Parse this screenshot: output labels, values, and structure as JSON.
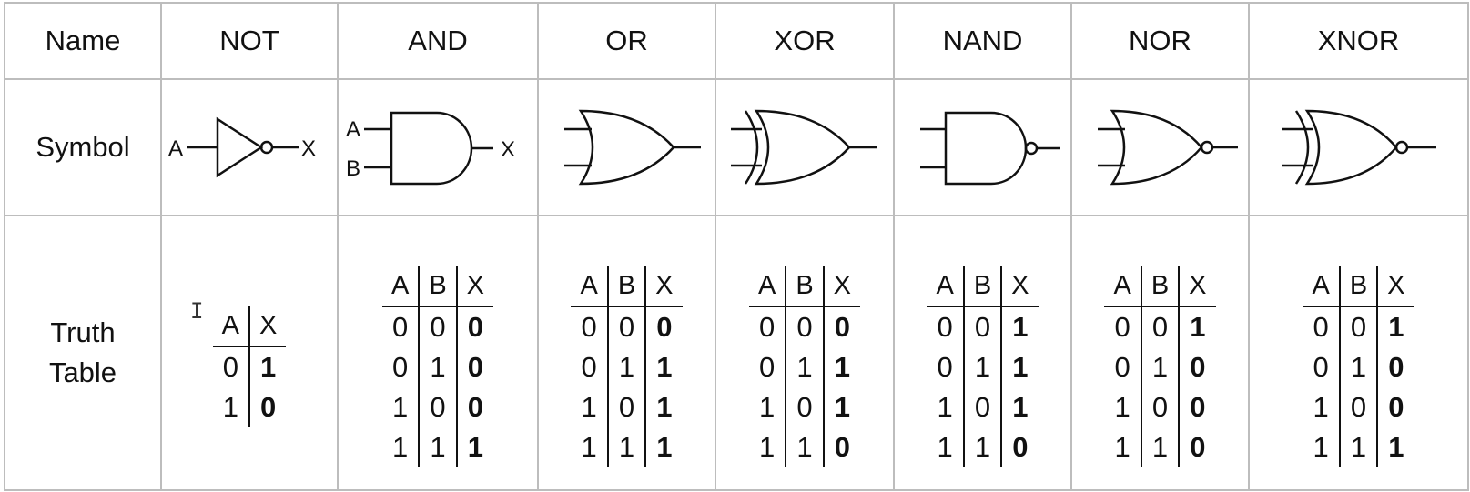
{
  "row_labels": {
    "name": "Name",
    "symbol": "Symbol",
    "truth_line1": "Truth",
    "truth_line2": "Table"
  },
  "pin_labels": {
    "a": "A",
    "b": "B",
    "x": "X"
  },
  "gates": [
    {
      "name": "NOT",
      "icon": "not-gate-icon",
      "columns": [
        "A",
        "X"
      ],
      "rows": [
        [
          "0",
          "1"
        ],
        [
          "1",
          "0"
        ]
      ]
    },
    {
      "name": "AND",
      "icon": "and-gate-icon",
      "columns": [
        "A",
        "B",
        "X"
      ],
      "rows": [
        [
          "0",
          "0",
          "0"
        ],
        [
          "0",
          "1",
          "0"
        ],
        [
          "1",
          "0",
          "0"
        ],
        [
          "1",
          "1",
          "1"
        ]
      ]
    },
    {
      "name": "OR",
      "icon": "or-gate-icon",
      "columns": [
        "A",
        "B",
        "X"
      ],
      "rows": [
        [
          "0",
          "0",
          "0"
        ],
        [
          "0",
          "1",
          "1"
        ],
        [
          "1",
          "0",
          "1"
        ],
        [
          "1",
          "1",
          "1"
        ]
      ]
    },
    {
      "name": "XOR",
      "icon": "xor-gate-icon",
      "columns": [
        "A",
        "B",
        "X"
      ],
      "rows": [
        [
          "0",
          "0",
          "0"
        ],
        [
          "0",
          "1",
          "1"
        ],
        [
          "1",
          "0",
          "1"
        ],
        [
          "1",
          "1",
          "0"
        ]
      ]
    },
    {
      "name": "NAND",
      "icon": "nand-gate-icon",
      "columns": [
        "A",
        "B",
        "X"
      ],
      "rows": [
        [
          "0",
          "0",
          "1"
        ],
        [
          "0",
          "1",
          "1"
        ],
        [
          "1",
          "0",
          "1"
        ],
        [
          "1",
          "1",
          "0"
        ]
      ]
    },
    {
      "name": "NOR",
      "icon": "nor-gate-icon",
      "columns": [
        "A",
        "B",
        "X"
      ],
      "rows": [
        [
          "0",
          "0",
          "1"
        ],
        [
          "0",
          "1",
          "0"
        ],
        [
          "1",
          "0",
          "0"
        ],
        [
          "1",
          "1",
          "0"
        ]
      ]
    },
    {
      "name": "XNOR",
      "icon": "xnor-gate-icon",
      "columns": [
        "A",
        "B",
        "X"
      ],
      "rows": [
        [
          "0",
          "0",
          "1"
        ],
        [
          "0",
          "1",
          "0"
        ],
        [
          "1",
          "0",
          "0"
        ],
        [
          "1",
          "1",
          "1"
        ]
      ]
    }
  ],
  "colors": {
    "grid": "#bdbdbd",
    "ink": "#111111"
  }
}
